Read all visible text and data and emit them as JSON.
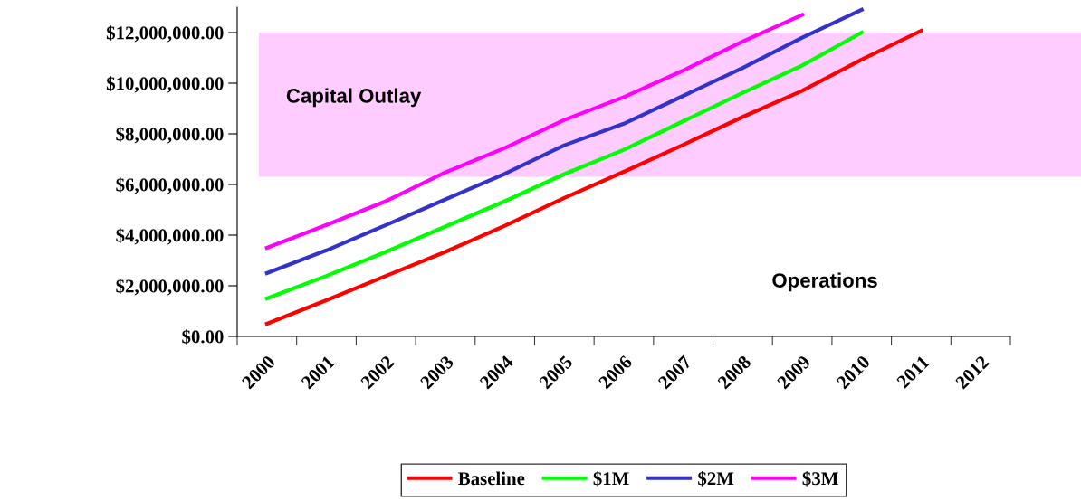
{
  "chart_data": {
    "type": "line",
    "categories": [
      "2000",
      "2001",
      "2002",
      "2003",
      "2004",
      "2005",
      "2006",
      "2007",
      "2008",
      "2009",
      "2010",
      "2011",
      "2012"
    ],
    "series": [
      {
        "name": "Baseline",
        "color": "#ff0000",
        "values": [
          500000,
          1430000,
          2390000,
          3340000,
          4370000,
          5470000,
          6500000,
          7570000,
          8670000,
          9700000,
          10930000,
          12070000,
          null
        ]
      },
      {
        "name": "$1M",
        "color": "#00ff00",
        "values": [
          1500000,
          2390000,
          3340000,
          4340000,
          5340000,
          6410000,
          7370000,
          8500000,
          9620000,
          10700000,
          12000000,
          null,
          null
        ]
      },
      {
        "name": "$2M",
        "color": "#3333cc",
        "values": [
          2500000,
          3400000,
          4400000,
          5410000,
          6420000,
          7550000,
          8400000,
          9500000,
          10600000,
          11800000,
          12900000,
          null,
          null
        ]
      },
      {
        "name": "$3M",
        "color": "#ff00ff",
        "values": [
          3500000,
          4400000,
          5340000,
          6480000,
          7440000,
          8550000,
          9450000,
          10500000,
          11650000,
          12700000,
          null,
          null,
          null
        ]
      }
    ],
    "ylim": [
      0,
      13000000
    ],
    "yticks": [
      {
        "value": 0,
        "label": "$0.00"
      },
      {
        "value": 2000000,
        "label": "$2,000,000.00"
      },
      {
        "value": 4000000,
        "label": "$4,000,000.00"
      },
      {
        "value": 6000000,
        "label": "$6,000,000.00"
      },
      {
        "value": 8000000,
        "label": "$8,000,000.00"
      },
      {
        "value": 10000000,
        "label": "$10,000,000.00"
      },
      {
        "value": 12000000,
        "label": "$12,000,000.00"
      }
    ],
    "bands": [
      {
        "axis": "y",
        "from": 6300000,
        "to": 12000000,
        "label": "Capital Outlay",
        "color": "#ffccff"
      }
    ],
    "annotations": [
      "Operations"
    ],
    "legend": "bottom",
    "grid": false,
    "marker": "none",
    "line_style": "solid"
  }
}
